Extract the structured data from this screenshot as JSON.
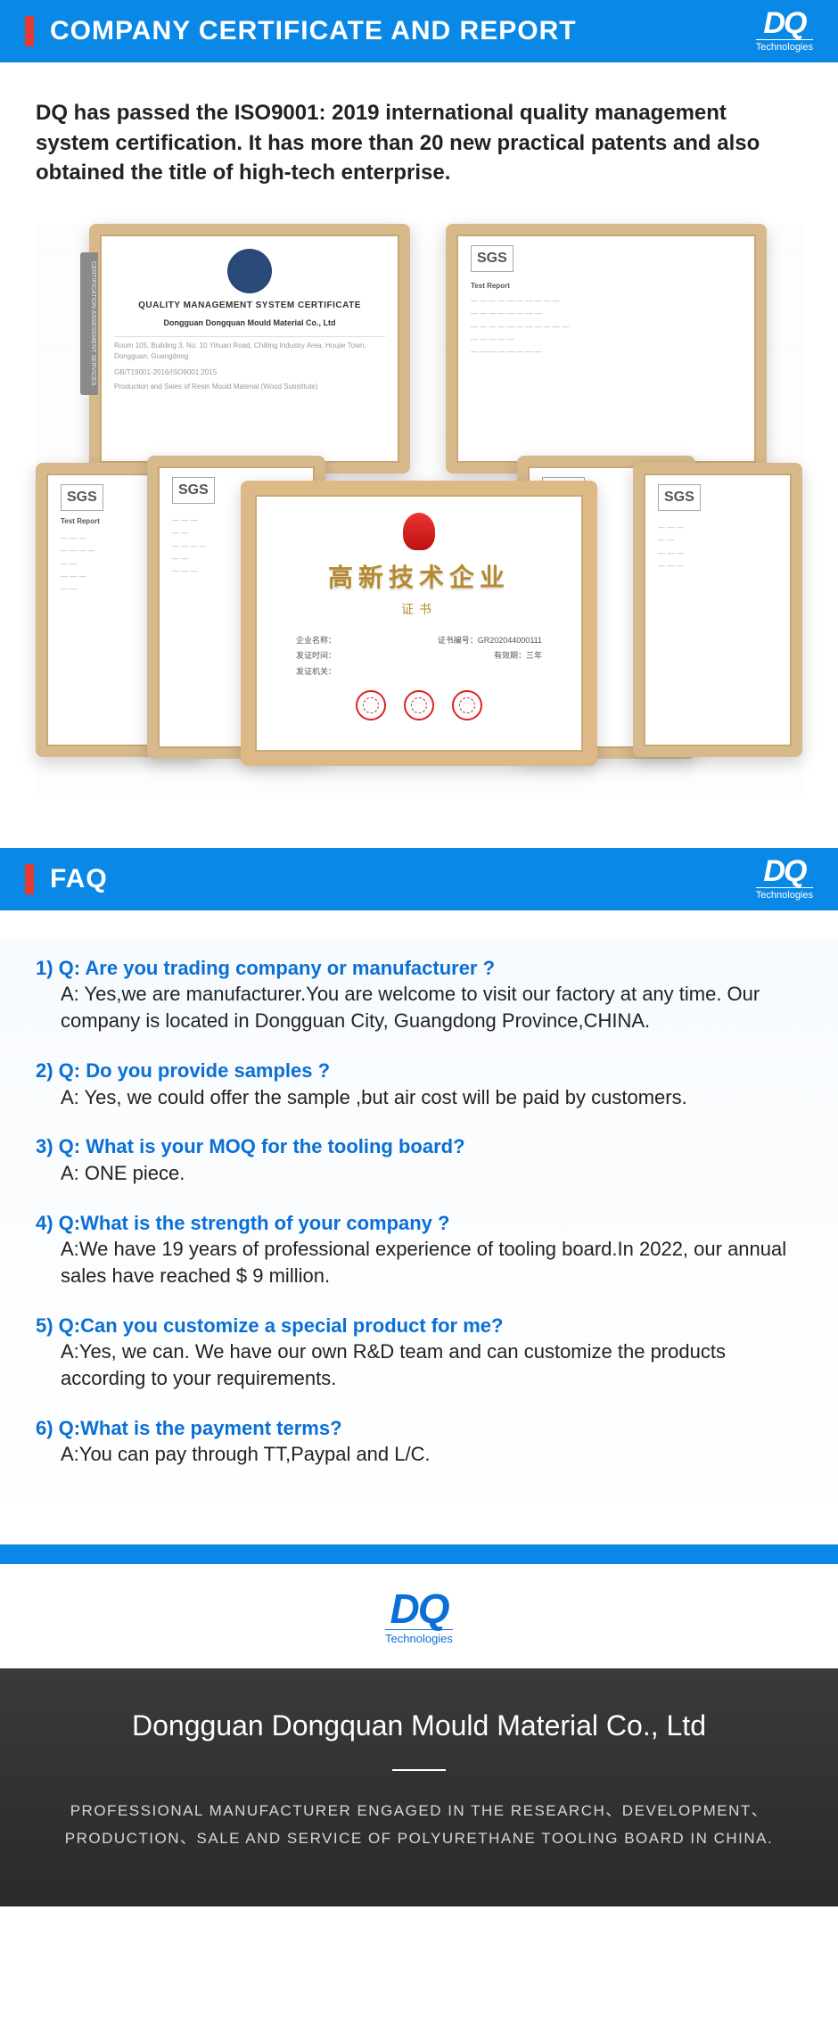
{
  "brand": {
    "name": "DQ",
    "sub": "Technologies"
  },
  "section1": {
    "title": "COMPANY CERTIFICATE AND REPORT",
    "intro": "DQ has passed the ISO9001: 2019 international quality management system certification. It has more than 20 new practical patents and also obtained the title of high-tech enterprise."
  },
  "certs": {
    "sgs_label": "SGS",
    "qms": {
      "title": "QUALITY MANAGEMENT SYSTEM CERTIFICATE",
      "company": "Dongguan Dongquan Mould Material Co., Ltd",
      "side": "CERTIFICATION ASSESSMENT SERVICES"
    },
    "hightech": {
      "big": "高新技术企业",
      "sub": "证书",
      "line1a": "企业名称：",
      "line1b": "证书编号：GR202044000111",
      "line2a": "发证时间：",
      "line2b": "有效期：三年",
      "line3": "发证机关："
    }
  },
  "section2": {
    "title": "FAQ",
    "items": [
      {
        "n": "1)",
        "q": "Q: Are you trading company or manufacturer ?",
        "a": "A:  Yes,we are manufacturer.You are welcome to visit our factory at any time. Our company is located in Dongguan City, Guangdong Province,CHINA."
      },
      {
        "n": "2)",
        "q": "Q: Do you provide samples ?",
        "a": "A: Yes, we could offer the sample ,but air cost will be paid by customers."
      },
      {
        "n": "3)",
        "q": "Q: What is your MOQ for the tooling board?",
        "a": "A: ONE piece."
      },
      {
        "n": "4)",
        "q": "Q:What is the strength of your company ?",
        "a": "A:We have 19 years of professional experience of tooling board.In 2022, our annual sales have reached $ 9 million."
      },
      {
        "n": "5)",
        "q": "Q:Can you customize a special product for me?",
        "a": "A:Yes, we can. We have our own R&D team and can customize the products according to your requirements."
      },
      {
        "n": "6)",
        "q": "Q:What is the payment terms?",
        "a": "A:You can pay through TT,Paypal and L/C."
      }
    ]
  },
  "footer": {
    "company": "Dongguan Dongquan Mould Material Co., Ltd",
    "desc": "PROFESSIONAL MANUFACTURER ENGAGED IN THE RESEARCH、DEVELOPMENT、PRODUCTION、SALE AND SERVICE OF POLYURETHANE TOOLING BOARD IN CHINA."
  }
}
